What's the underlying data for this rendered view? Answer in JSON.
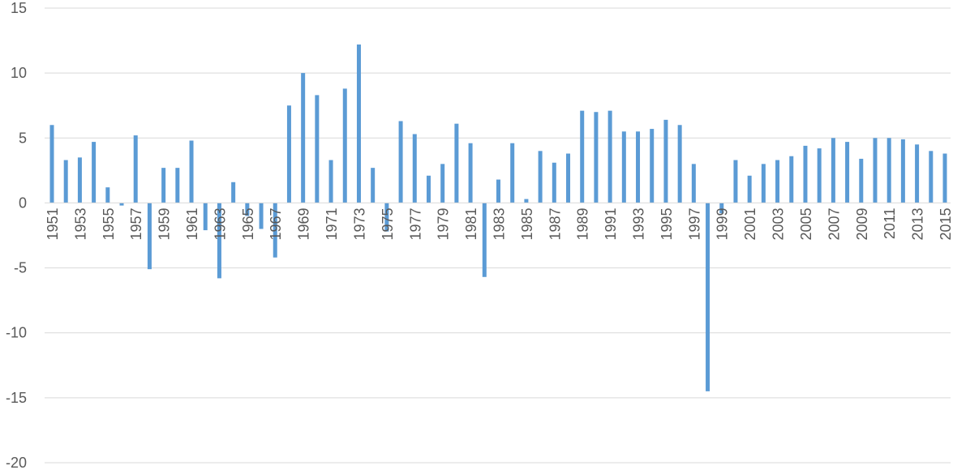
{
  "chart_data": {
    "type": "bar",
    "title": "",
    "xlabel": "",
    "ylabel": "",
    "ylim": [
      -20,
      15
    ],
    "yticks": [
      15,
      10,
      5,
      0,
      -5,
      -10,
      -15,
      -20
    ],
    "grid": true,
    "legend": "none",
    "bar_color": "#5b9bd5",
    "categories": [
      "1951",
      "1952",
      "1953",
      "1954",
      "1955",
      "1956",
      "1957",
      "1958",
      "1959",
      "1960",
      "1961",
      "1962",
      "1963",
      "1964",
      "1965",
      "1966",
      "1967",
      "1968",
      "1969",
      "1970",
      "1971",
      "1972",
      "1973",
      "1974",
      "1975",
      "1976",
      "1977",
      "1978",
      "1979",
      "1980",
      "1981",
      "1982",
      "1983",
      "1984",
      "1985",
      "1986",
      "1987",
      "1988",
      "1989",
      "1990",
      "1991",
      "1992",
      "1993",
      "1994",
      "1995",
      "1996",
      "1997",
      "1998",
      "1999",
      "2000",
      "2001",
      "2002",
      "2003",
      "2004",
      "2005",
      "2006",
      "2007",
      "2008",
      "2009",
      "2010",
      "2011",
      "2012",
      "2013",
      "2014",
      "2015"
    ],
    "x_tick_labels": [
      "1951",
      "1953",
      "1955",
      "1957",
      "1959",
      "1961",
      "1963",
      "1965",
      "1967",
      "1969",
      "1971",
      "1973",
      "1975",
      "1977",
      "1979",
      "1981",
      "1983",
      "1985",
      "1987",
      "1989",
      "1991",
      "1993",
      "1995",
      "1997",
      "1999",
      "2001",
      "2003",
      "2005",
      "2007",
      "2009",
      "2011",
      "2013",
      "2015"
    ],
    "values": [
      6.0,
      3.3,
      3.5,
      4.7,
      1.2,
      -0.2,
      5.2,
      -5.1,
      2.7,
      2.7,
      4.8,
      -2.1,
      -5.8,
      1.6,
      -1.0,
      -2.0,
      -4.2,
      7.5,
      10.0,
      8.3,
      3.3,
      8.8,
      12.2,
      2.7,
      -2.2,
      6.3,
      5.3,
      2.1,
      3.0,
      6.1,
      4.6,
      -5.7,
      1.8,
      4.6,
      0.3,
      4.0,
      3.1,
      3.8,
      7.1,
      7.0,
      7.1,
      5.5,
      5.5,
      5.7,
      6.4,
      6.0,
      3.0,
      -14.5,
      -0.8,
      3.3,
      2.1,
      3.0,
      3.3,
      3.6,
      4.4,
      4.2,
      5.0,
      4.7,
      3.4,
      5.0,
      5.0,
      4.9,
      4.5,
      4.0,
      3.8
    ]
  }
}
